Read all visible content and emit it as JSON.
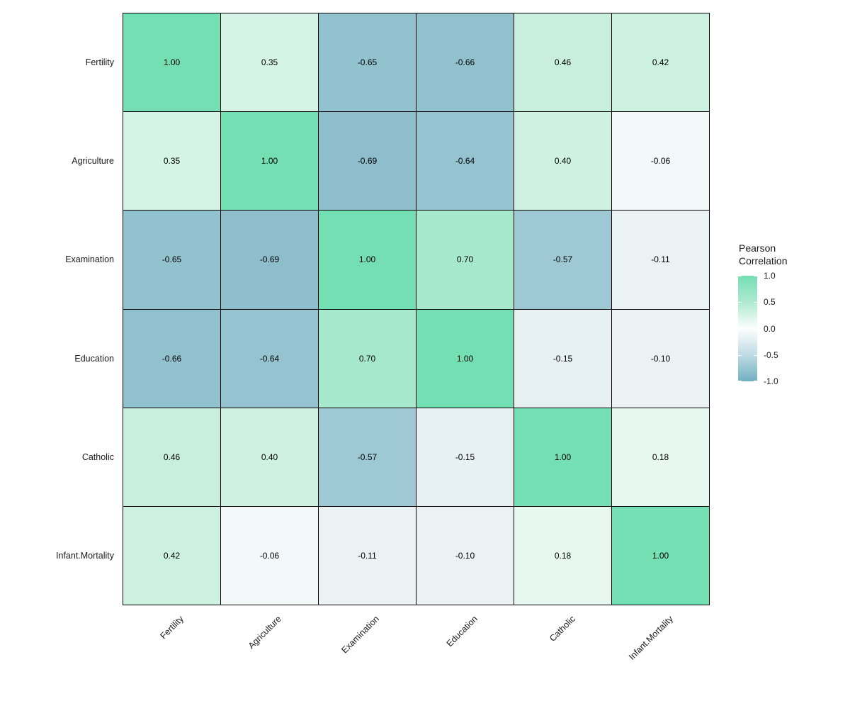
{
  "chart_data": {
    "type": "heatmap",
    "title": "",
    "legend_title": "Pearson\nCorrelation",
    "rows": [
      "Fertility",
      "Agriculture",
      "Examination",
      "Education",
      "Catholic",
      "Infant.Mortality"
    ],
    "columns": [
      "Fertility",
      "Agriculture",
      "Examination",
      "Education",
      "Catholic",
      "Infant.Mortality"
    ],
    "matrix": [
      [
        1.0,
        0.35,
        -0.65,
        -0.66,
        0.46,
        0.42
      ],
      [
        0.35,
        1.0,
        -0.69,
        -0.64,
        0.4,
        -0.06
      ],
      [
        -0.65,
        -0.69,
        1.0,
        0.7,
        -0.57,
        -0.11
      ],
      [
        -0.66,
        -0.64,
        0.7,
        1.0,
        -0.15,
        -0.1
      ],
      [
        0.46,
        0.4,
        -0.57,
        -0.15,
        1.0,
        0.18
      ],
      [
        0.42,
        -0.06,
        -0.11,
        -0.1,
        0.18,
        1.0
      ]
    ],
    "value_decimals": 2,
    "legend_ticks": [
      "1.0",
      "0.5",
      "0.0",
      "-0.5",
      "-1.0"
    ],
    "legend_position": "right",
    "colorscale": {
      "high": "#74DFB3",
      "mid": "#FFFFFF",
      "low": "#72AFC1"
    },
    "legend_gradient": [
      "#74DFB3",
      "#AEE9D2",
      "#FDFEFE",
      "#BFDBE3",
      "#72AFC1"
    ],
    "cell_colors": {
      "1.00": "#74DFB3",
      "0.70": "#A6E8CC",
      "0.46": "#C8EFDE",
      "0.42": "#CCF1E1",
      "0.40": "#CFF1E2",
      "0.35": "#D5F3E7",
      "0.18": "#E7F8F0",
      "-0.06": "#F3F8F9",
      "-0.10": "#EBF2F4",
      "-0.11": "#EAF2F4",
      "-0.15": "#E7F0F3",
      "-0.57": "#9EC9D4",
      "-0.64": "#95C3D0",
      "-0.65": "#93C2CF",
      "-0.66": "#92C1CE",
      "-0.69": "#8EBECC"
    },
    "cell_border_color": "#000000",
    "grid": false
  }
}
